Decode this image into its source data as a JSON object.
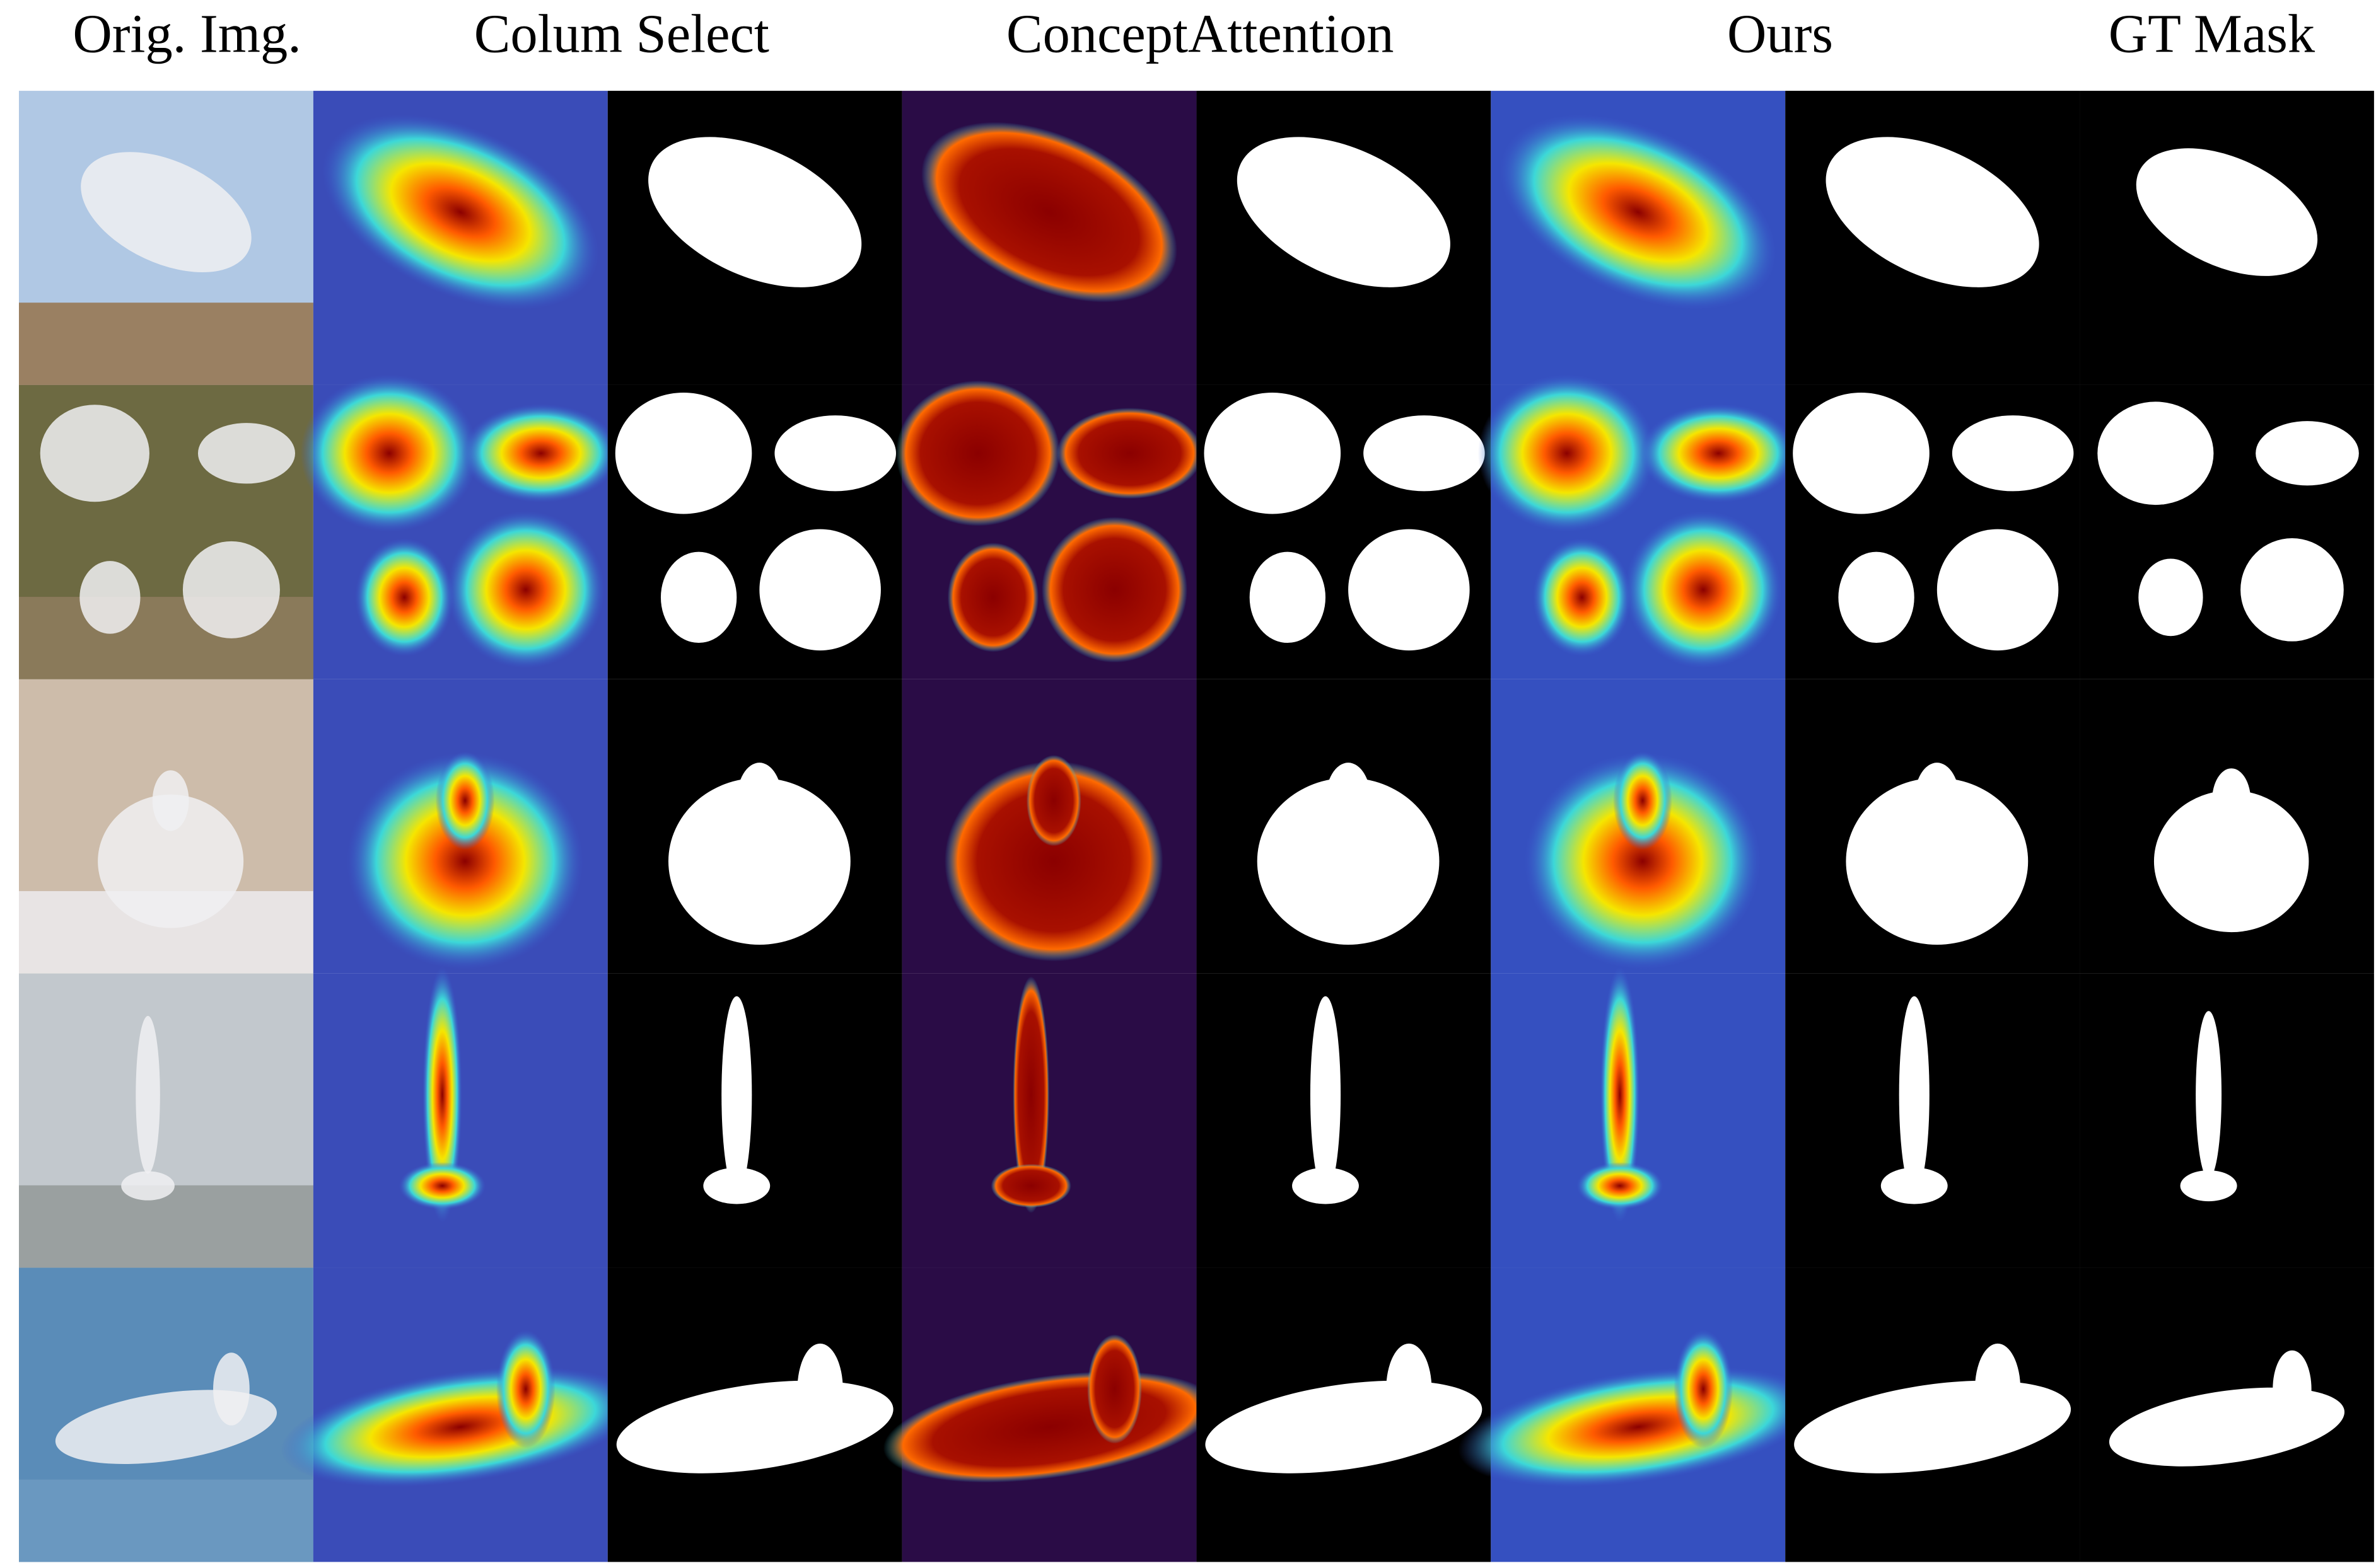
{
  "header": {
    "columns": [
      "Orig. Img.",
      "Colum Select",
      "ConceptAttention",
      "Ours",
      "GT Mask"
    ]
  }
}
